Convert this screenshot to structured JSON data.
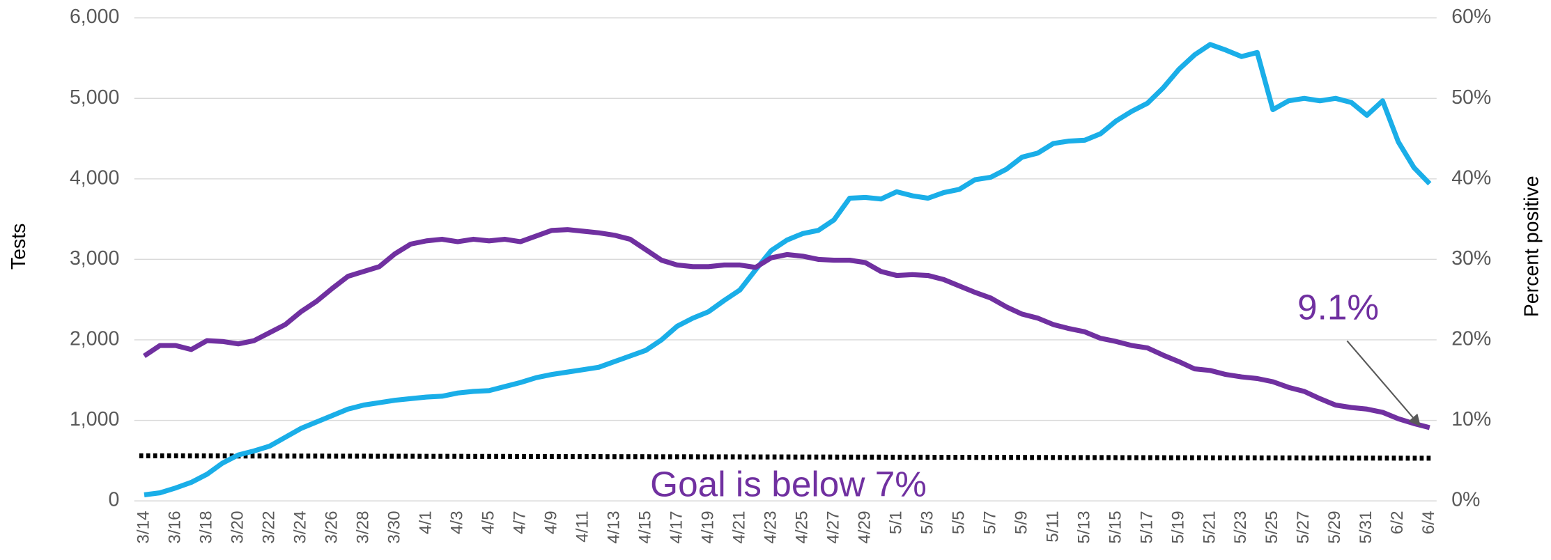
{
  "chart_data": {
    "type": "line",
    "categories": [
      "3/14",
      null,
      "3/16",
      null,
      "3/18",
      null,
      "3/20",
      null,
      "3/22",
      null,
      "3/24",
      null,
      "3/26",
      null,
      "3/28",
      null,
      "3/30",
      null,
      "4/1",
      null,
      "4/3",
      null,
      "4/5",
      null,
      "4/7",
      null,
      "4/9",
      null,
      "4/11",
      null,
      "4/13",
      null,
      "4/15",
      null,
      "4/17",
      null,
      "4/19",
      null,
      "4/21",
      null,
      "4/23",
      null,
      "4/25",
      null,
      "4/27",
      null,
      "4/29",
      null,
      "5/1",
      null,
      "5/3",
      null,
      "5/5",
      null,
      "5/7",
      null,
      "5/9",
      null,
      "5/11",
      null,
      "5/13",
      null,
      "5/15",
      null,
      "5/17",
      null,
      "5/19",
      null,
      "5/21",
      null,
      "5/23",
      null,
      "5/25",
      null,
      "5/27",
      null,
      "5/29",
      null,
      "5/31",
      null,
      "6/2",
      null,
      "6/4"
    ],
    "series": [
      {
        "name": "Tests",
        "color": "#1aaee8",
        "values": [
          75,
          100,
          160,
          230,
          330,
          470,
          570,
          620,
          680,
          790,
          900,
          980,
          1060,
          1140,
          1190,
          1220,
          1250,
          1270,
          1290,
          1300,
          1340,
          1360,
          1370,
          1420,
          1470,
          1530,
          1570,
          1600,
          1630,
          1660,
          1730,
          1800,
          1870,
          2000,
          2170,
          2270,
          2350,
          2490,
          2620,
          2870,
          3110,
          3240,
          3320,
          3360,
          3490,
          3760,
          3770,
          3750,
          3840,
          3790,
          3760,
          3830,
          3870,
          3990,
          4020,
          4120,
          4270,
          4320,
          4440,
          4470,
          4480,
          4560,
          4720,
          4840,
          4940,
          5130,
          5360,
          5540,
          5670,
          5600,
          5520,
          5570,
          4860,
          4970,
          5000,
          4970,
          5000,
          4950,
          4790,
          4970,
          4460,
          4140,
          3940
        ]
      },
      {
        "name": "Percent positive",
        "color": "#7030a0",
        "axis": "y2",
        "values": [
          18.0,
          19.3,
          19.3,
          18.8,
          19.9,
          19.8,
          19.5,
          19.9,
          20.9,
          21.9,
          23.5,
          24.8,
          26.4,
          27.9,
          28.5,
          29.1,
          30.7,
          31.9,
          32.3,
          32.5,
          32.2,
          32.5,
          32.3,
          32.5,
          32.2,
          32.9,
          33.6,
          33.7,
          33.5,
          33.3,
          33.0,
          32.5,
          31.2,
          29.9,
          29.3,
          29.1,
          29.1,
          29.3,
          29.3,
          29.0,
          30.2,
          30.6,
          30.4,
          30.0,
          29.9,
          29.9,
          29.6,
          28.5,
          28.0,
          28.1,
          28.0,
          27.5,
          26.7,
          25.9,
          25.2,
          24.1,
          23.2,
          22.7,
          21.9,
          21.4,
          21.0,
          20.2,
          19.8,
          19.3,
          19.0,
          18.1,
          17.3,
          16.4,
          16.2,
          15.7,
          15.4,
          15.2,
          14.8,
          14.1,
          13.6,
          12.7,
          11.9,
          11.6,
          11.4,
          11.0,
          10.2,
          9.6,
          9.1
        ]
      }
    ],
    "goal_line": {
      "values": [
        5.6,
        5.3
      ],
      "color": "#000000",
      "axis": "y2"
    },
    "ylabel": "Tests",
    "y2label": "Percent positive",
    "ylim": [
      0,
      6000
    ],
    "yticks": [
      0,
      {
        "value": 1000,
        "label": "1,000"
      },
      {
        "value": 2000,
        "label": "2,000"
      },
      {
        "value": 3000,
        "label": "3,000"
      },
      {
        "value": 4000,
        "label": "4,000"
      },
      {
        "value": 5000,
        "label": "5,000"
      },
      {
        "value": 6000,
        "label": "6,000"
      }
    ],
    "y2lim": [
      0,
      60
    ],
    "y2ticks": [
      {
        "value": 0,
        "label": "0%"
      },
      {
        "value": 10,
        "label": "10%"
      },
      {
        "value": 20,
        "label": "20%"
      },
      {
        "value": 30,
        "label": "30%"
      },
      {
        "value": 40,
        "label": "40%"
      },
      {
        "value": 50,
        "label": "50%"
      },
      {
        "value": 60,
        "label": "60%"
      }
    ],
    "grid": true,
    "annotations": [
      {
        "text": "9.1%",
        "color": "#7030a0"
      },
      {
        "text": "Goal is below 7%",
        "color": "#7030a0"
      }
    ]
  }
}
